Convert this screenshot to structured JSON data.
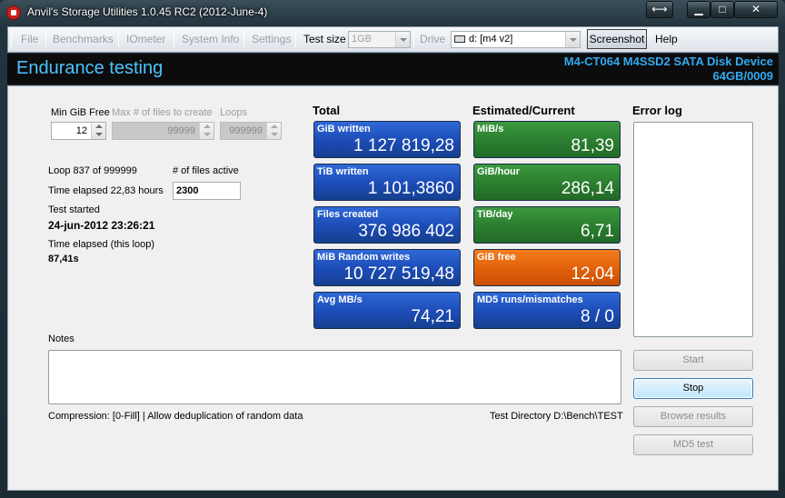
{
  "window": {
    "title": "Anvil's Storage Utilities 1.0.45 RC2 (2012-June-4)"
  },
  "toolbar": {
    "file": "File",
    "benchmarks": "Benchmarks",
    "iometer": "IOmeter",
    "system_info": "System Info",
    "settings": "Settings",
    "test_size_label": "Test size",
    "test_size_value": "1GB",
    "drive_label": "Drive",
    "drive_value": "d: [m4 v2]",
    "screenshot": "Screenshot",
    "help": "Help"
  },
  "header": {
    "title": "Endurance testing",
    "device": "M4-CT064 M4SSD2 SATA Disk Device",
    "size": "64GB/0009"
  },
  "settings": {
    "min_gib_free_label": "Min GiB Free",
    "min_gib_free_value": "12",
    "max_files_label": "Max # of files to create",
    "max_files_value": "99999",
    "loops_label": "Loops",
    "loops_value": "999999"
  },
  "progress": {
    "loop": "Loop 837 of 999999",
    "files_active_label": "# of files active",
    "files_active_value": "2300",
    "time_elapsed": "Time elapsed 22,83 hours",
    "test_started_label": "Test started",
    "test_started_value": "24-jun-2012 23:26:21",
    "loop_elapsed_label": "Time elapsed (this loop)",
    "loop_elapsed_value": "87,41s"
  },
  "totals": {
    "heading": "Total",
    "tiles": [
      {
        "title": "GiB written",
        "value": "1 127 819,28"
      },
      {
        "title": "TiB written",
        "value": "1 101,3860"
      },
      {
        "title": "Files created",
        "value": "376 986 402"
      },
      {
        "title": "MiB Random writes",
        "value": "10 727 519,48"
      },
      {
        "title": "Avg MB/s",
        "value": "74,21"
      }
    ]
  },
  "estimated": {
    "heading": "Estimated/Current",
    "tiles": [
      {
        "title": "MiB/s",
        "value": "81,39",
        "color": "#2b7d2f"
      },
      {
        "title": "GiB/hour",
        "value": "286,14",
        "color": "#2b7d2f"
      },
      {
        "title": "TiB/day",
        "value": "6,71",
        "color": "#2b7d2f"
      },
      {
        "title": "GiB free",
        "value": "12,04",
        "color": "#e1600a"
      },
      {
        "title": "MD5 runs/mismatches",
        "value": "8 / 0",
        "color": "#1c4bb5"
      }
    ]
  },
  "error_log": {
    "heading": "Error log"
  },
  "notes": {
    "label": "Notes"
  },
  "footer": {
    "compression": "Compression: [0-Fill]  |  Allow deduplication of random data",
    "test_directory": "Test Directory D:\\Bench\\TEST"
  },
  "buttons": {
    "start": "Start",
    "stop": "Stop",
    "browse": "Browse results",
    "md5": "MD5 test"
  }
}
